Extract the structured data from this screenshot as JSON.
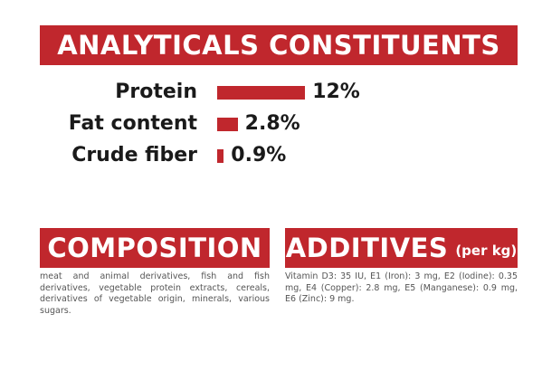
{
  "chart_data": {
    "type": "bar",
    "orientation": "horizontal",
    "title": "ANALYTICALS CONSTITUENTS",
    "categories": [
      "Protein",
      "Fat content",
      "Crude fiber"
    ],
    "values": [
      12,
      2.8,
      0.9
    ],
    "value_labels": [
      "12%",
      "2.8%",
      "0.9%"
    ],
    "color": "#c0272d"
  },
  "composition": {
    "title": "COMPOSITION",
    "text": "meat and animal derivatives, fish and fish derivatives, vegetable protein extracts, cereals, derivatives of vegetable origin, minerals, various sugars."
  },
  "additives": {
    "title": "ADDITIVES",
    "unit": "(per kg)",
    "text": "Vitamin D3: 35 IU, E1 (Iron): 3 mg, E2 (Iodine): 0.35 mg, E4 (Copper): 2.8 mg, E5 (Manganese): 0.9 mg, E6 (Zinc): 9 mg."
  }
}
